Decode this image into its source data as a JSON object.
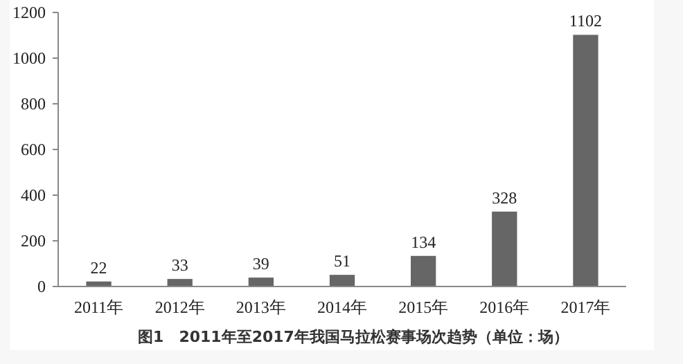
{
  "chart_data": {
    "type": "bar",
    "title": "图1　2011年至2017年我国马拉松赛事场次趋势（单位：场）",
    "categories": [
      "2011年",
      "2012年",
      "2013年",
      "2014年",
      "2015年",
      "2016年",
      "2017年"
    ],
    "values": [
      22,
      33,
      39,
      51,
      134,
      328,
      1102
    ],
    "color": "#666666",
    "ylim": [
      0,
      1200
    ],
    "yticks": [
      0,
      200,
      400,
      600,
      800,
      1000,
      1200
    ],
    "data_labels": true,
    "grid": false
  }
}
